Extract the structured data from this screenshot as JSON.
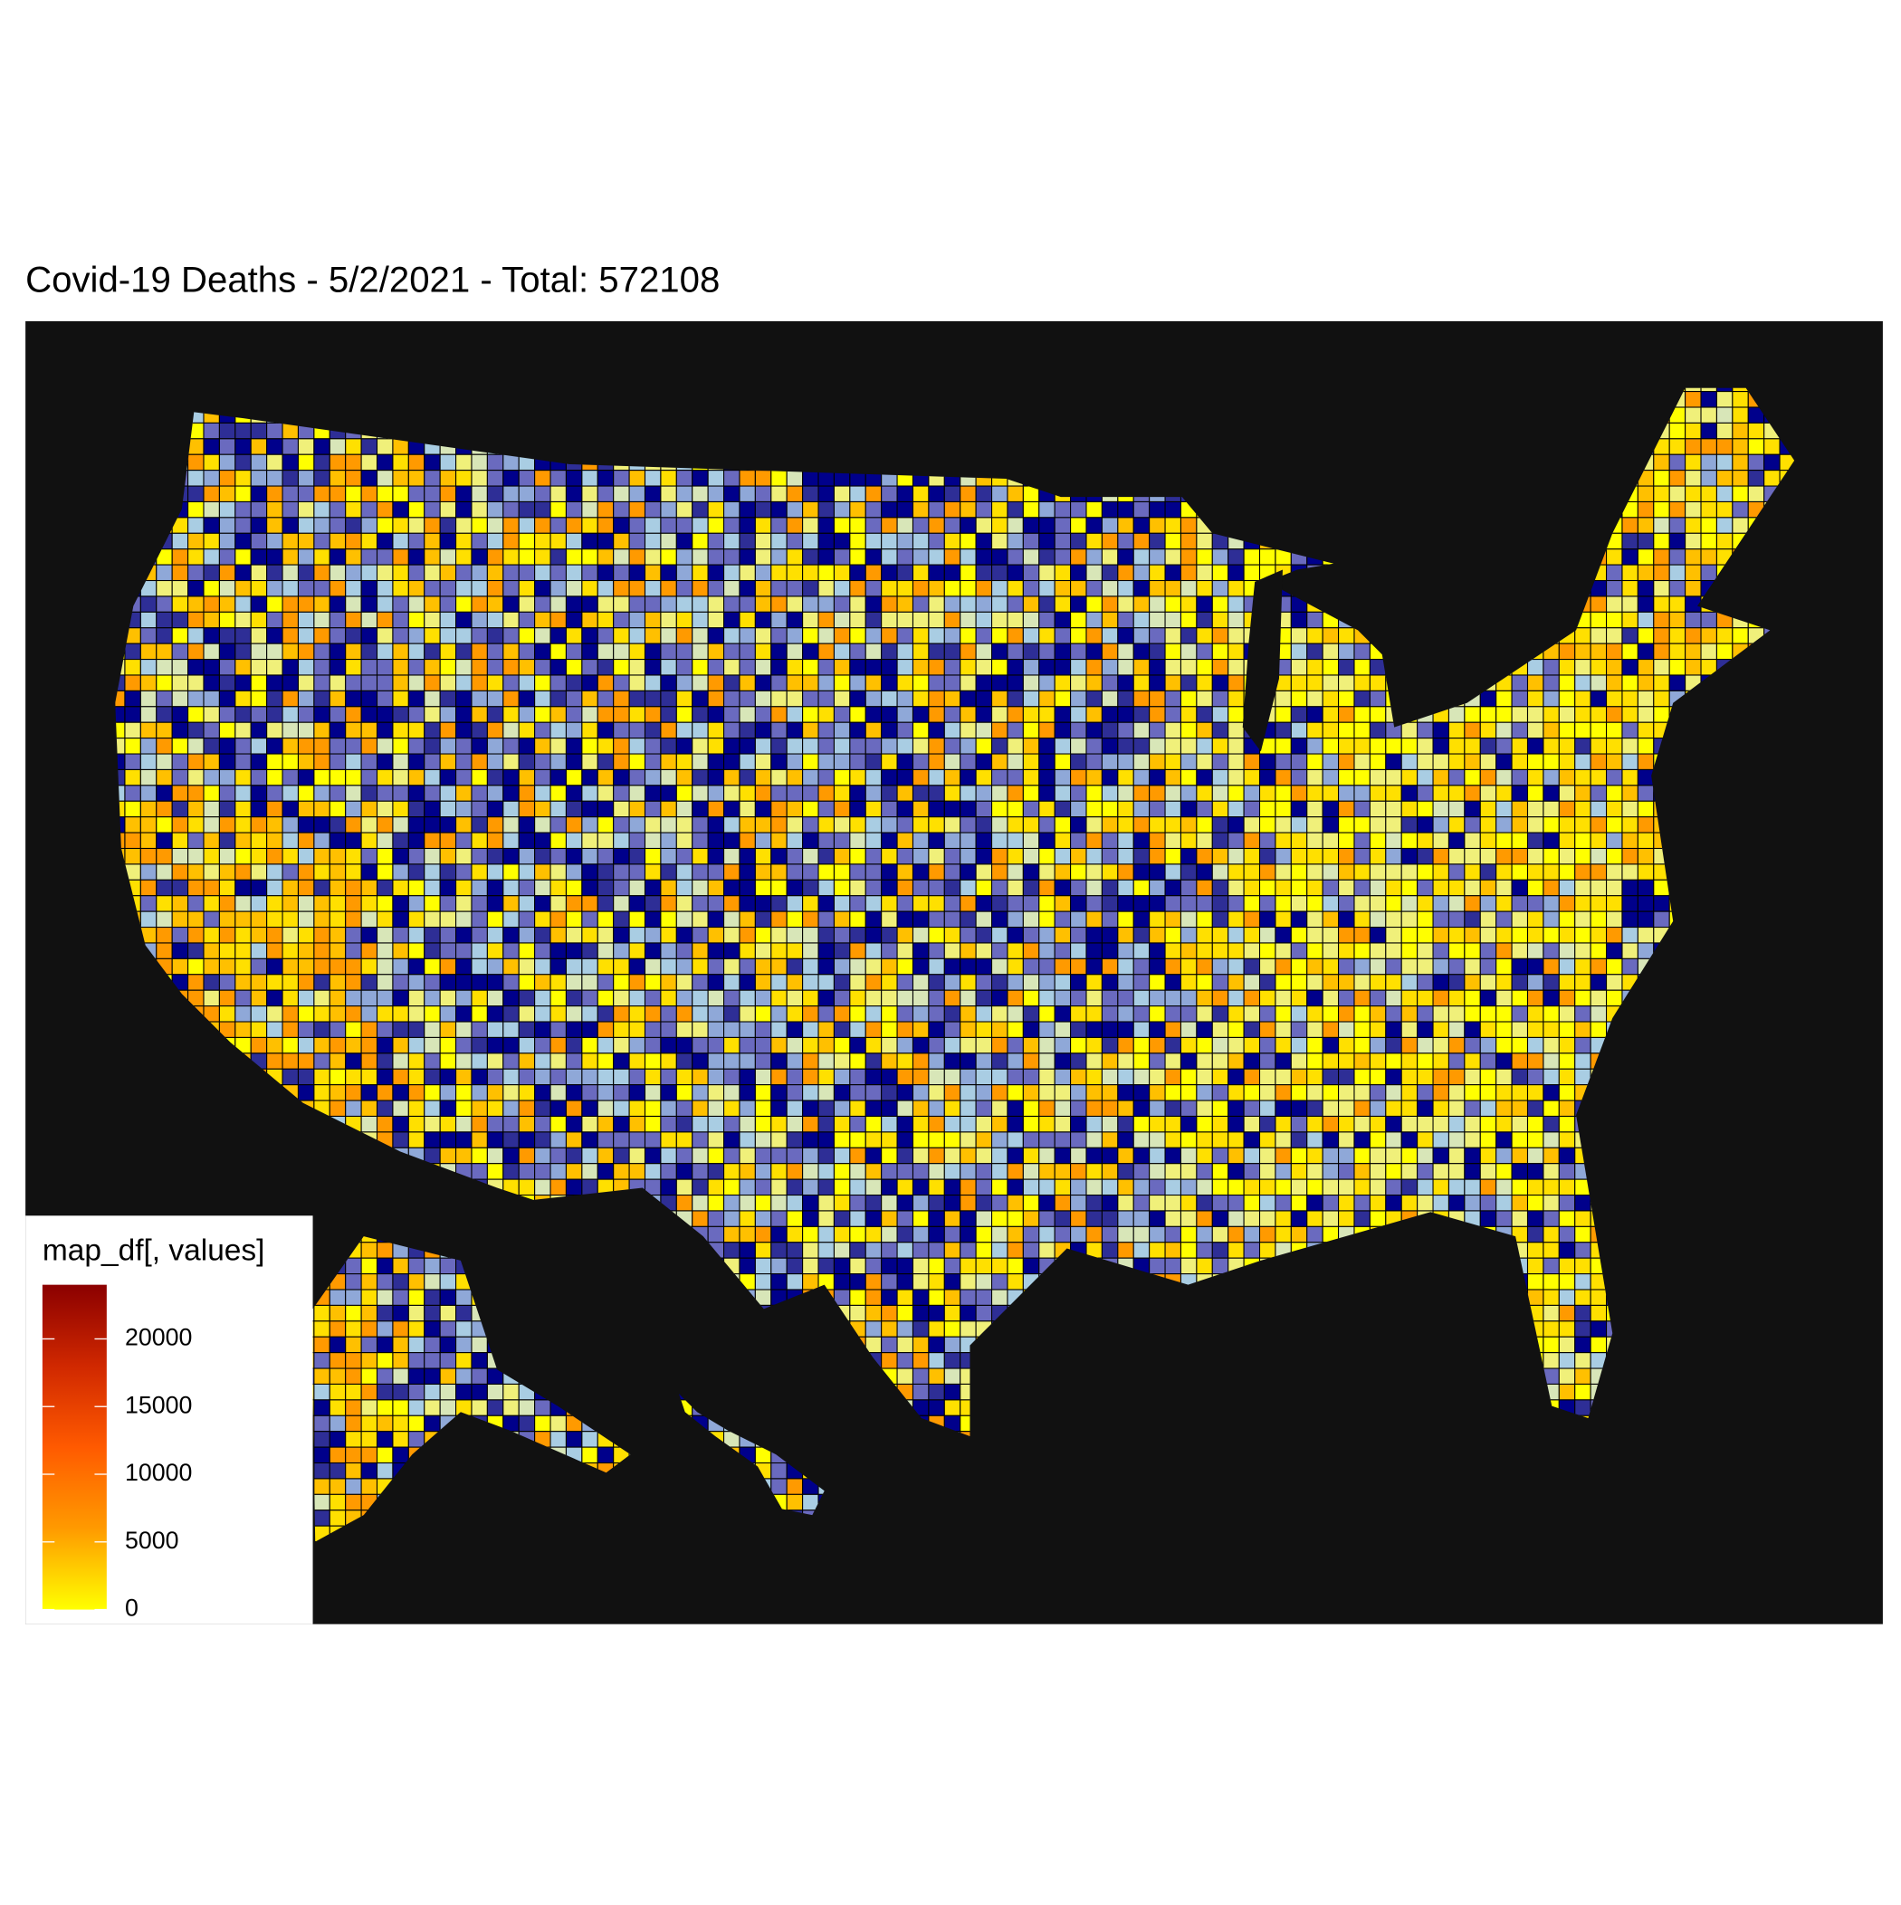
{
  "title": "Covid-19 Deaths - 5/2/2021 - Total: 572108",
  "legend": {
    "title": "map_df[, values]",
    "limits": [
      0,
      24000
    ],
    "ticks": [
      0,
      5000,
      10000,
      15000,
      20000
    ],
    "colors": [
      "#ffff00",
      "#ff9a00",
      "#ff5a00",
      "#d02800",
      "#8b0000"
    ]
  }
}
